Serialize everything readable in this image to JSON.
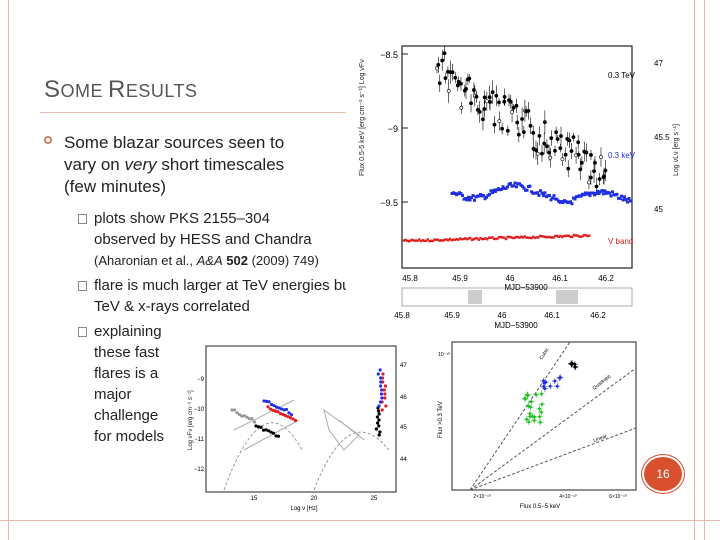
{
  "slide": {
    "title_first": "S",
    "title_first_rest": "OME",
    "title_second": "R",
    "title_second_rest": "ESULTS",
    "bullet_main_a": "Some blazar sources seen to vary on ",
    "bullet_main_em": "very",
    "bullet_main_b": " short timescales (few minutes)",
    "sub1": "plots show PKS 2155–304 observed by HESS and Chandra",
    "cite_a": "(Aharonian et al., ",
    "cite_journal": "A&A",
    "cite_vol": "502",
    "cite_b": " (2009) 749)",
    "sub2": "flare is much larger at TeV energies but TeV & x-rays correlated",
    "sub3_lines": [
      "explaining",
      "these fast",
      "flares is a",
      "major",
      "challenge",
      "for models"
    ],
    "page_number": "16"
  },
  "lightcurve": {
    "yticks": [
      "−8.5",
      "−9",
      "−9.5"
    ],
    "yticks_right": [
      "47",
      "45.5",
      "45"
    ],
    "xticks": [
      "45.8",
      "45.9",
      "46",
      "46.1",
      "46.2"
    ],
    "xlabel": "MJD−53900",
    "label_tev": "0.3 TeV",
    "label_kev": "0.3 keV",
    "label_v": "V band"
  },
  "sed": {
    "yticks": [
      "−9",
      "−10",
      "−11",
      "−12"
    ],
    "yticks_right": [
      "47",
      "46",
      "45",
      "44"
    ],
    "xticks": [
      "15",
      "20",
      "25"
    ],
    "xlabel": "Log ν [Hz]"
  },
  "correlation": {
    "yticks": [
      "10⁻¹⁰"
    ],
    "xticks": [
      "2×10⁻¹⁰",
      "4×10⁻¹⁰",
      "6×10⁻¹⁰"
    ],
    "xlabel": "Flux 0.5−5 keV",
    "ylabel": "Flux >0.3 TeV",
    "line_labels": [
      "Cubic",
      "Quadratic",
      "Linear"
    ]
  },
  "colors": {
    "accent": "#d9502f",
    "tev": "#000000",
    "kev": "#2030e0",
    "vband": "#e02020",
    "green": "#20c020"
  }
}
